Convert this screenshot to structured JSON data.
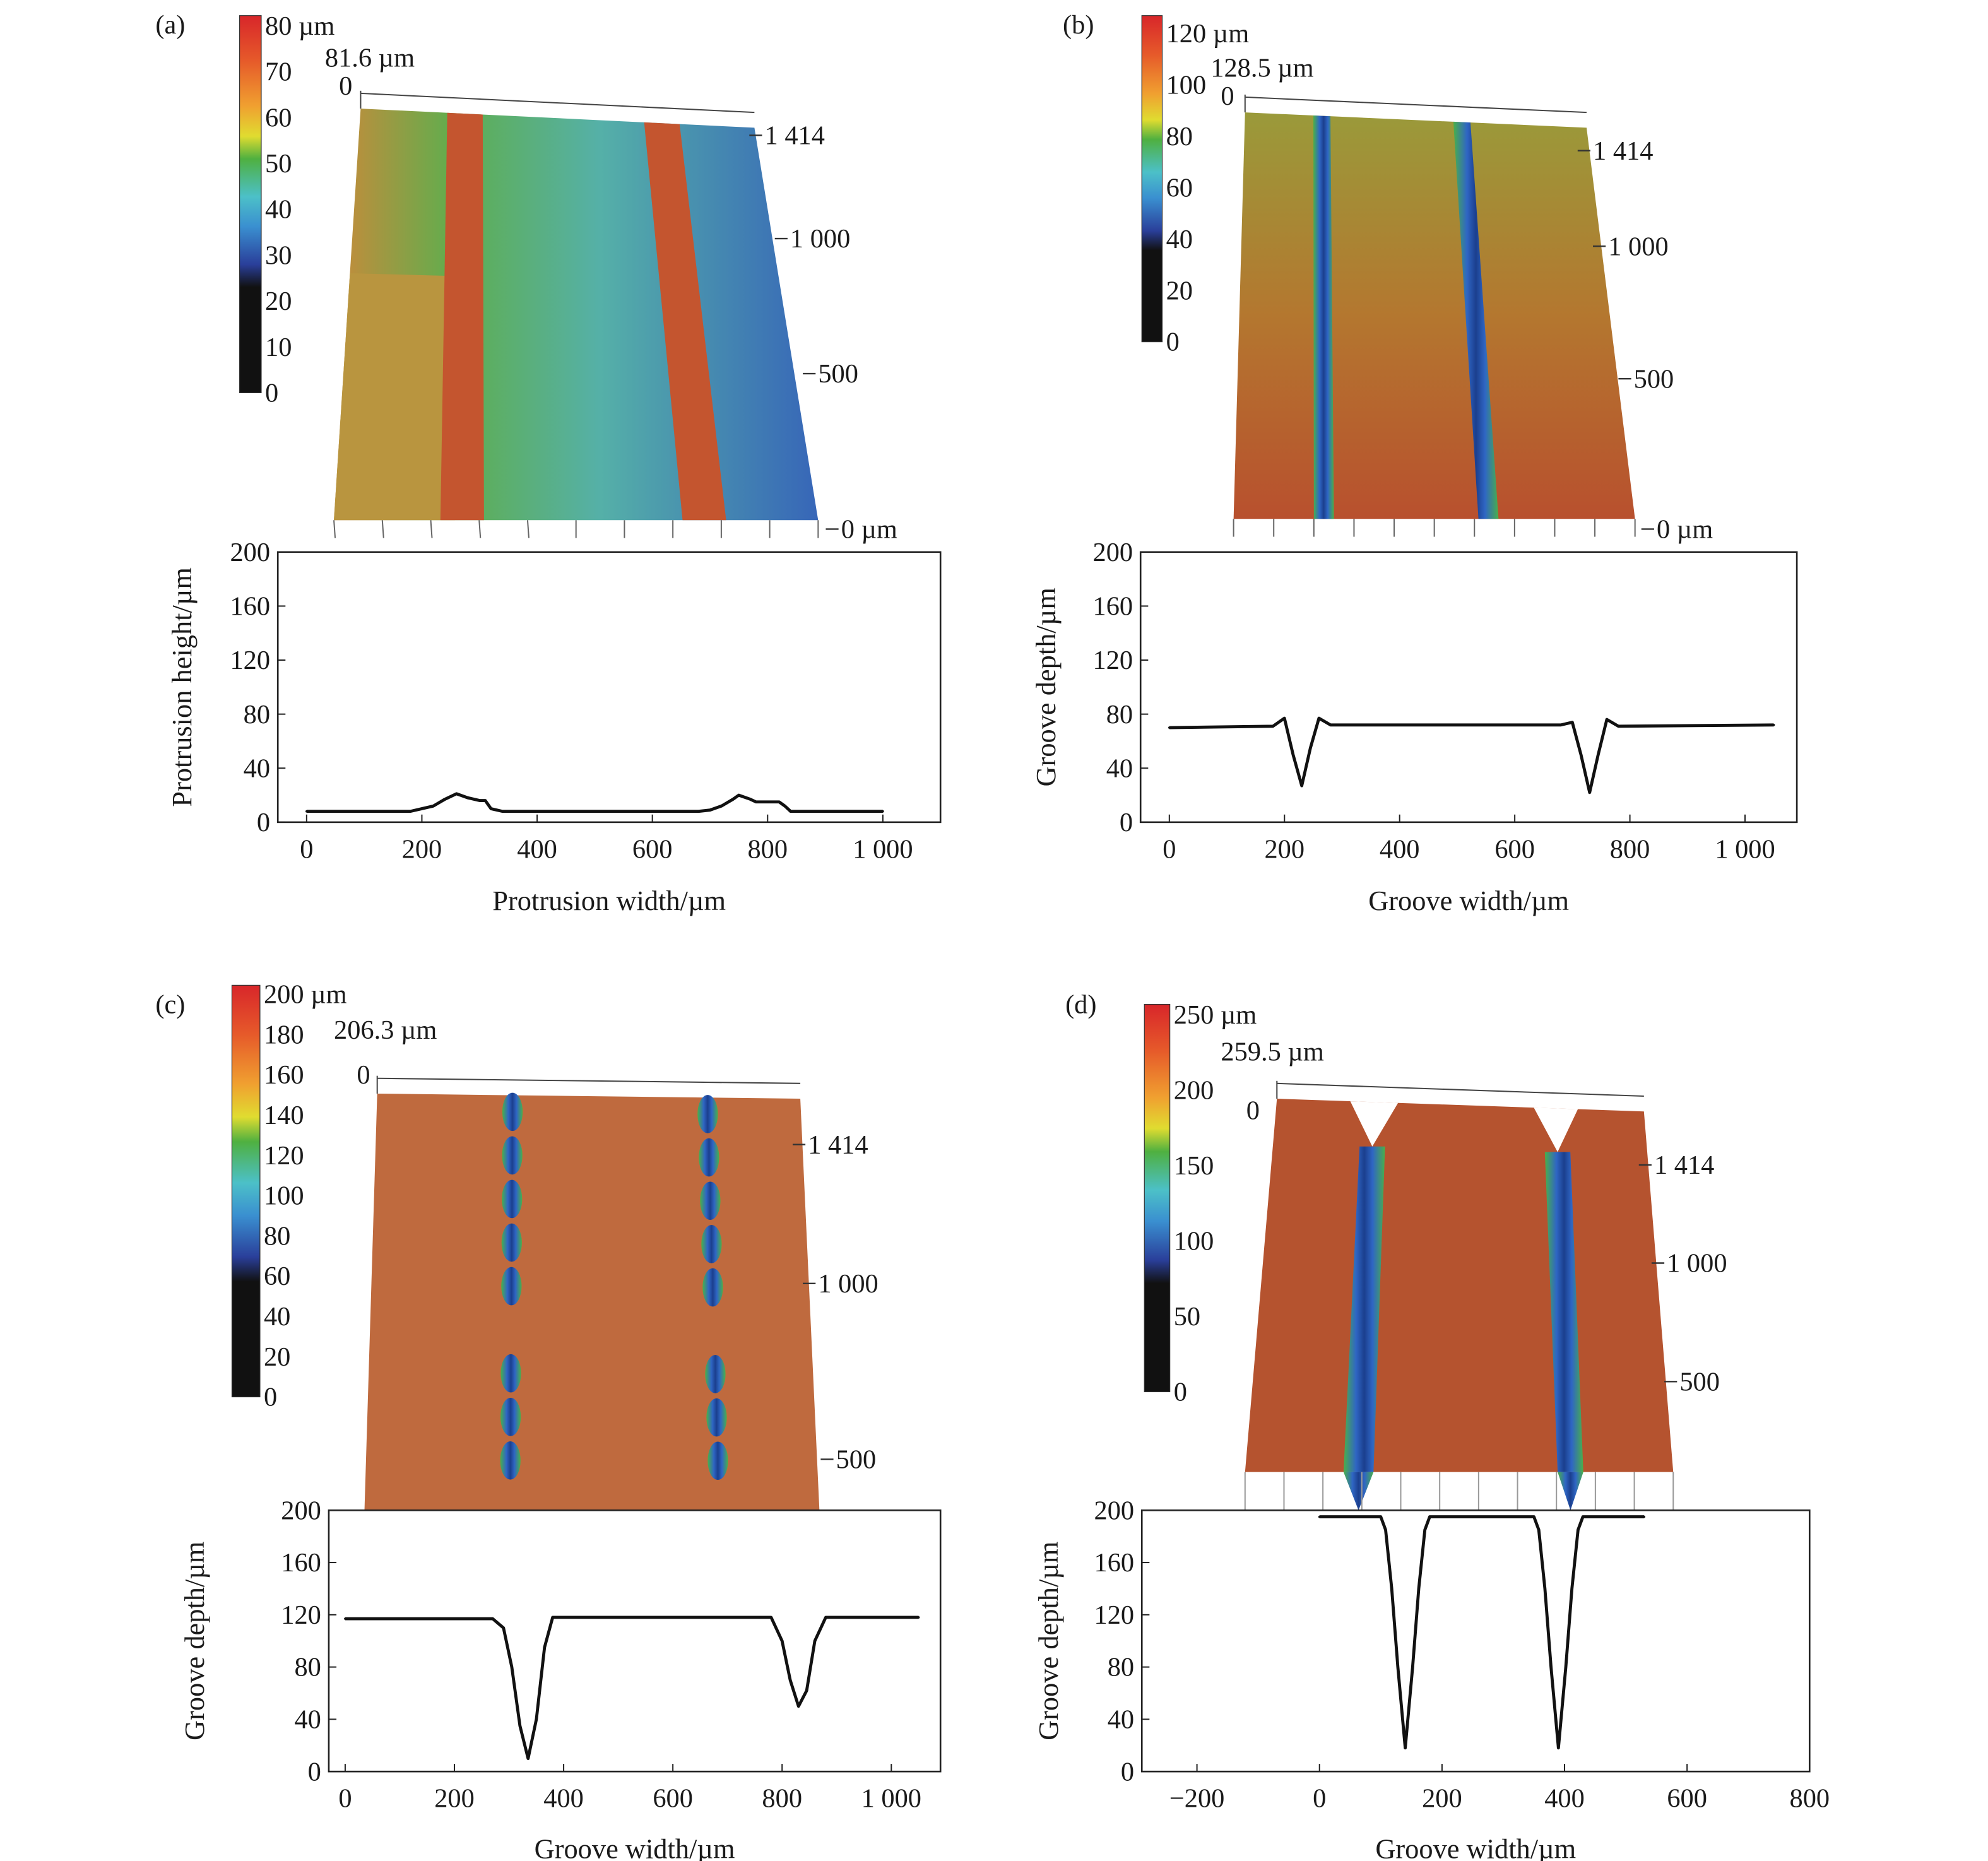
{
  "chart_data": [
    {
      "panel_label": "(a)",
      "type": "line",
      "surface_3d": {
        "colorbar_ticks": [
          "0",
          "10",
          "20",
          "30",
          "40",
          "50",
          "60",
          "70",
          "80 µm"
        ],
        "colorbar_range": [
          0,
          80
        ],
        "max_height_label": "81.6 µm",
        "z_zero_label": "0",
        "y_axis_ticks": [
          "1 414",
          "1 000",
          "500",
          "0 µm"
        ],
        "colors": {
          "base_left": "#c98a3a",
          "mid": "#5fae4e",
          "right": "#3766b8",
          "stripe": "#c4552f"
        }
      },
      "xlabel": "Protrusion width/µm",
      "ylabel": "Protrusion height/µm",
      "xlim": [
        -50,
        1100
      ],
      "ylim": [
        0,
        200
      ],
      "xticks": [
        0,
        200,
        400,
        600,
        800,
        1000
      ],
      "xtick_labels": [
        "0",
        "200",
        "400",
        "600",
        "800",
        "1 000"
      ],
      "yticks": [
        0,
        40,
        80,
        120,
        160,
        200
      ],
      "ytick_labels": [
        "0",
        "40",
        "80",
        "120",
        "160",
        "200"
      ],
      "series": [
        {
          "x": [
            0,
            180,
            200,
            220,
            240,
            260,
            280,
            300,
            310,
            320,
            340,
            600,
            680,
            700,
            720,
            740,
            750,
            770,
            780,
            800,
            820,
            830,
            840,
            1000
          ],
          "y": [
            8,
            8,
            10,
            12,
            17,
            21,
            18,
            16,
            16,
            10,
            8,
            8,
            8,
            9,
            12,
            17,
            20,
            17,
            15,
            15,
            15,
            12,
            8,
            8
          ]
        }
      ]
    },
    {
      "panel_label": "(b)",
      "type": "line",
      "surface_3d": {
        "colorbar_ticks": [
          "0",
          "20",
          "40",
          "60",
          "80",
          "100",
          "120 µm"
        ],
        "colorbar_range": [
          0,
          120
        ],
        "max_height_label": "128.5 µm",
        "z_zero_label": "0",
        "y_axis_ticks": [
          "1 414",
          "1 000",
          "500",
          "0 µm"
        ],
        "colors": {
          "top": "#9a9a3a",
          "bottom": "#b8502e",
          "groove": "#2d66c4"
        }
      },
      "xlabel": "Groove width/µm",
      "ylabel": "Groove depth/µm",
      "xlim": [
        -50,
        1090
      ],
      "ylim": [
        0,
        200
      ],
      "xticks": [
        0,
        200,
        400,
        600,
        800,
        1000
      ],
      "xtick_labels": [
        "0",
        "200",
        "400",
        "600",
        "800",
        "1 000"
      ],
      "yticks": [
        0,
        40,
        80,
        120,
        160,
        200
      ],
      "ytick_labels": [
        "0",
        "40",
        "80",
        "120",
        "160",
        "200"
      ],
      "series": [
        {
          "x": [
            0,
            180,
            200,
            215,
            230,
            245,
            260,
            280,
            680,
            700,
            715,
            730,
            745,
            760,
            780,
            1050
          ],
          "y": [
            70,
            71,
            77,
            50,
            27,
            55,
            77,
            72,
            72,
            74,
            50,
            22,
            50,
            76,
            71,
            72
          ]
        }
      ]
    },
    {
      "panel_label": "(c)",
      "type": "line",
      "surface_3d": {
        "colorbar_ticks": [
          "0",
          "20",
          "40",
          "60",
          "80",
          "100",
          "120",
          "140",
          "160",
          "180",
          "200 µm"
        ],
        "colorbar_range": [
          0,
          200
        ],
        "max_height_label": "206.3 µm",
        "z_zero_label": "0",
        "y_axis_ticks": [
          "1 414",
          "1 000",
          "500"
        ],
        "colors": {
          "surface": "#bf6a3e",
          "groove": "#2f6fc8"
        }
      },
      "xlabel": "Groove width/µm",
      "ylabel": "Groove depth/µm",
      "xlim": [
        -30,
        1090
      ],
      "ylim": [
        0,
        200
      ],
      "xticks": [
        0,
        200,
        400,
        600,
        800,
        1000
      ],
      "xtick_labels": [
        "0",
        "200",
        "400",
        "600",
        "800",
        "1 000"
      ],
      "yticks": [
        0,
        40,
        80,
        120,
        160,
        200
      ],
      "ytick_labels": [
        "0",
        "40",
        "80",
        "120",
        "160",
        "200"
      ],
      "series": [
        {
          "x": [
            0,
            270,
            290,
            305,
            320,
            335,
            350,
            365,
            380,
            760,
            780,
            800,
            815,
            830,
            845,
            860,
            880,
            1050
          ],
          "y": [
            117,
            117,
            110,
            80,
            35,
            10,
            40,
            95,
            118,
            118,
            118,
            100,
            70,
            50,
            62,
            100,
            118,
            118
          ]
        }
      ]
    },
    {
      "panel_label": "(d)",
      "type": "line",
      "surface_3d": {
        "colorbar_ticks": [
          "0",
          "50",
          "100",
          "150",
          "200",
          "250 µm"
        ],
        "colorbar_range": [
          0,
          250
        ],
        "max_height_label": "259.5 µm",
        "z_zero_label": "0",
        "y_axis_ticks": [
          "1 414",
          "1 000",
          "500"
        ],
        "colors": {
          "surface": "#b5532f",
          "groove": "#2f64c4"
        }
      },
      "xlabel": "Groove width/µm",
      "ylabel": "Groove depth/µm",
      "xlim": [
        -290,
        800
      ],
      "ylim": [
        0,
        200
      ],
      "xticks": [
        -200,
        0,
        200,
        400,
        600,
        800
      ],
      "xtick_labels": [
        "−200",
        "0",
        "200",
        "400",
        "600",
        "800"
      ],
      "yticks": [
        0,
        40,
        80,
        120,
        160,
        200
      ],
      "ytick_labels": [
        "0",
        "40",
        "80",
        "120",
        "160",
        "200"
      ],
      "series": [
        {
          "x": [
            0,
            100,
            108,
            118,
            128,
            140,
            152,
            162,
            172,
            180,
            350,
            358,
            368,
            378,
            390,
            402,
            412,
            422,
            430,
            530
          ],
          "y": [
            195,
            195,
            185,
            140,
            80,
            18,
            80,
            140,
            185,
            195,
            195,
            185,
            140,
            80,
            18,
            80,
            140,
            185,
            195,
            195
          ]
        }
      ]
    }
  ]
}
